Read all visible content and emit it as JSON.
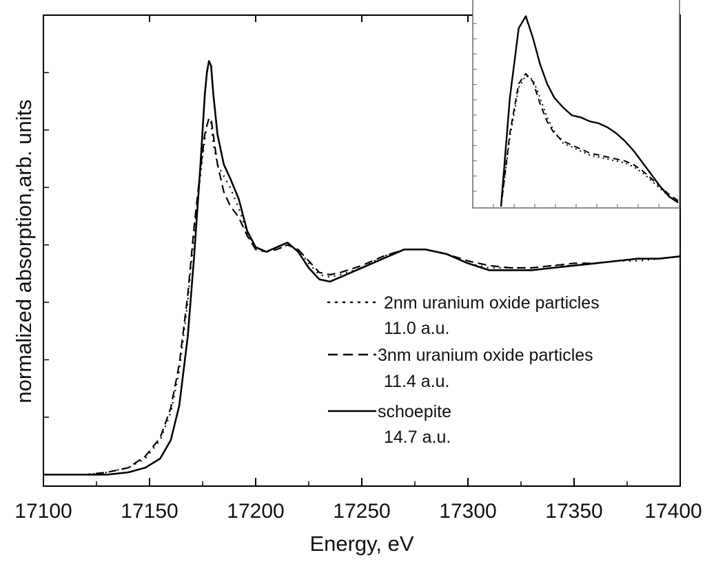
{
  "chart_data": {
    "type": "line",
    "xlabel": "Energy, eV",
    "ylabel": "normalized absorption,arb. units",
    "xlim": [
      17100,
      17400
    ],
    "ylim": [
      -0.05,
      2.0
    ],
    "x_ticks": [
      17100,
      17150,
      17200,
      17250,
      17300,
      17350,
      17400
    ],
    "y_ticks_labeled": false,
    "grid": false,
    "legend_position": "center-right",
    "series": [
      {
        "name": "2nm uranium oxide particles",
        "note": "11.0 a.u.",
        "style": "dotted",
        "x": [
          17100,
          17120,
          17130,
          17140,
          17148,
          17155,
          17160,
          17164,
          17168,
          17171,
          17174,
          17176,
          17177,
          17178,
          17179,
          17180,
          17182,
          17185,
          17188,
          17192,
          17196,
          17200,
          17205,
          17210,
          17215,
          17220,
          17225,
          17230,
          17235,
          17240,
          17250,
          17260,
          17270,
          17280,
          17290,
          17300,
          17310,
          17320,
          17330,
          17340,
          17350,
          17360,
          17370,
          17380,
          17390,
          17400
        ],
        "y": [
          0.0,
          0.0,
          0.01,
          0.03,
          0.07,
          0.15,
          0.27,
          0.45,
          0.75,
          1.05,
          1.3,
          1.46,
          1.52,
          1.55,
          1.53,
          1.44,
          1.35,
          1.3,
          1.25,
          1.16,
          1.05,
          0.98,
          0.97,
          0.98,
          1.0,
          0.98,
          0.92,
          0.87,
          0.86,
          0.87,
          0.9,
          0.95,
          0.98,
          0.98,
          0.96,
          0.92,
          0.9,
          0.9,
          0.9,
          0.91,
          0.91,
          0.92,
          0.93,
          0.93,
          0.94,
          0.95
        ]
      },
      {
        "name": "3nm uranium oxide particles",
        "note": "11.4 a.u.",
        "style": "dashed",
        "x": [
          17100,
          17120,
          17130,
          17140,
          17148,
          17155,
          17160,
          17164,
          17168,
          17171,
          17174,
          17176,
          17177,
          17178,
          17179,
          17180,
          17182,
          17185,
          17188,
          17192,
          17196,
          17200,
          17205,
          17210,
          17215,
          17220,
          17225,
          17230,
          17235,
          17240,
          17250,
          17260,
          17270,
          17280,
          17290,
          17300,
          17310,
          17320,
          17330,
          17340,
          17350,
          17360,
          17370,
          17380,
          17390,
          17400
        ],
        "y": [
          0.0,
          0.0,
          0.01,
          0.03,
          0.08,
          0.16,
          0.29,
          0.48,
          0.78,
          1.08,
          1.33,
          1.48,
          1.52,
          1.55,
          1.55,
          1.48,
          1.35,
          1.23,
          1.17,
          1.12,
          1.04,
          0.98,
          0.97,
          0.98,
          1.0,
          0.98,
          0.93,
          0.88,
          0.87,
          0.88,
          0.91,
          0.95,
          0.98,
          0.98,
          0.96,
          0.93,
          0.91,
          0.9,
          0.9,
          0.91,
          0.92,
          0.92,
          0.93,
          0.94,
          0.94,
          0.95
        ]
      },
      {
        "name": "schoepite",
        "note": "14.7 a.u.",
        "style": "solid",
        "x": [
          17100,
          17120,
          17130,
          17140,
          17148,
          17155,
          17160,
          17164,
          17168,
          17171,
          17174,
          17176,
          17177,
          17178,
          17179,
          17180,
          17182,
          17185,
          17188,
          17192,
          17196,
          17200,
          17205,
          17210,
          17215,
          17220,
          17225,
          17230,
          17235,
          17240,
          17250,
          17260,
          17270,
          17280,
          17290,
          17300,
          17310,
          17320,
          17330,
          17340,
          17350,
          17360,
          17370,
          17380,
          17390,
          17400
        ],
        "y": [
          0.0,
          0.0,
          0.0,
          0.01,
          0.03,
          0.07,
          0.15,
          0.3,
          0.6,
          0.95,
          1.35,
          1.65,
          1.75,
          1.8,
          1.78,
          1.66,
          1.48,
          1.35,
          1.29,
          1.2,
          1.06,
          0.99,
          0.97,
          0.99,
          1.01,
          0.97,
          0.9,
          0.85,
          0.84,
          0.86,
          0.9,
          0.94,
          0.98,
          0.98,
          0.96,
          0.92,
          0.89,
          0.89,
          0.89,
          0.9,
          0.91,
          0.92,
          0.93,
          0.94,
          0.94,
          0.95
        ]
      }
    ],
    "legend_entries": [
      {
        "label": "2nm uranium oxide particles",
        "sub": "11.0 a.u.",
        "style": "dotted"
      },
      {
        "label": "3nm uranium oxide particles",
        "sub": "11.4 a.u.",
        "style": "dashed"
      },
      {
        "label": "schoepite",
        "sub": "14.7 a.u.",
        "style": "solid"
      }
    ],
    "inset": {
      "type": "line",
      "series": [
        {
          "name": "2nm uranium oxide particles",
          "style": "dotted",
          "t": [
            0.0,
            0.05,
            0.1,
            0.14,
            0.18,
            0.22,
            0.26,
            0.3,
            0.35,
            0.4,
            0.45,
            0.5,
            0.55,
            0.6,
            0.65,
            0.7,
            0.75,
            0.8,
            0.85,
            0.9,
            0.95,
            1.0
          ],
          "v": [
            0.0,
            0.35,
            0.6,
            0.66,
            0.64,
            0.55,
            0.45,
            0.38,
            0.32,
            0.3,
            0.28,
            0.26,
            0.25,
            0.24,
            0.23,
            0.22,
            0.2,
            0.17,
            0.13,
            0.09,
            0.05,
            0.02
          ]
        },
        {
          "name": "3nm uranium oxide particles",
          "style": "dashed",
          "t": [
            0.0,
            0.05,
            0.1,
            0.14,
            0.18,
            0.22,
            0.26,
            0.3,
            0.35,
            0.4,
            0.45,
            0.5,
            0.55,
            0.6,
            0.65,
            0.7,
            0.75,
            0.8,
            0.85,
            0.9,
            0.95,
            1.0
          ],
          "v": [
            0.0,
            0.37,
            0.62,
            0.67,
            0.63,
            0.52,
            0.43,
            0.37,
            0.33,
            0.31,
            0.29,
            0.27,
            0.26,
            0.25,
            0.24,
            0.23,
            0.21,
            0.18,
            0.14,
            0.1,
            0.06,
            0.03
          ]
        },
        {
          "name": "schoepite",
          "style": "solid",
          "t": [
            0.0,
            0.05,
            0.1,
            0.14,
            0.18,
            0.22,
            0.26,
            0.3,
            0.35,
            0.4,
            0.45,
            0.5,
            0.55,
            0.6,
            0.65,
            0.7,
            0.75,
            0.8,
            0.85,
            0.9,
            0.95,
            1.0
          ],
          "v": [
            0.0,
            0.55,
            0.9,
            0.96,
            0.85,
            0.72,
            0.62,
            0.55,
            0.5,
            0.46,
            0.45,
            0.43,
            0.42,
            0.4,
            0.37,
            0.33,
            0.28,
            0.22,
            0.16,
            0.1,
            0.05,
            0.02
          ]
        }
      ]
    }
  }
}
